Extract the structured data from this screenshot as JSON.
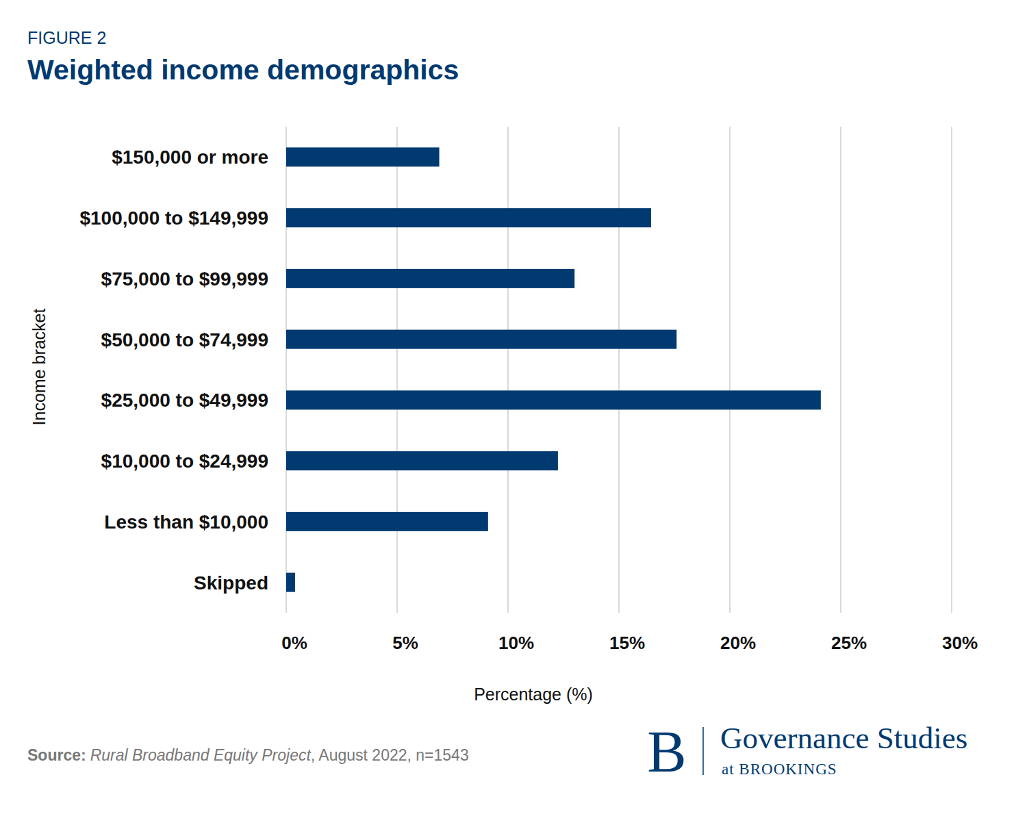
{
  "chart_data": {
    "type": "bar",
    "orientation": "horizontal",
    "title": "Weighted income demographics",
    "annotations": [
      "FIGURE 2",
      "Source:",
      "Rural Broadband Equity Project",
      ", August 2022, n=1543",
      "B",
      "Governance Studies",
      "at BROOKINGS"
    ],
    "x_label": "Percentage (%)",
    "y_label": "Income bracket",
    "categories": [
      "$150,000 or more",
      "$100,000 to $149,999",
      "$75,000 to $99,999",
      "$50,000 to $74,999",
      "$25,000 to $49,999",
      "$10,000 to $24,999",
      "Less than $10,000",
      "Skipped"
    ],
    "values": [
      6.9,
      16.45,
      13.0,
      17.6,
      24.1,
      12.25,
      9.1,
      0.4
    ],
    "color": "#003a70",
    "xlim": [
      0,
      30
    ],
    "xticks": [
      {
        "value": 0,
        "label": "0%"
      },
      {
        "value": 5,
        "label": "5%"
      },
      {
        "value": 10,
        "label": "10%"
      },
      {
        "value": 15,
        "label": "15%"
      },
      {
        "value": 20,
        "label": "20%"
      },
      {
        "value": 25,
        "label": "25%"
      },
      {
        "value": 30,
        "label": "30%"
      }
    ],
    "grid": true
  }
}
